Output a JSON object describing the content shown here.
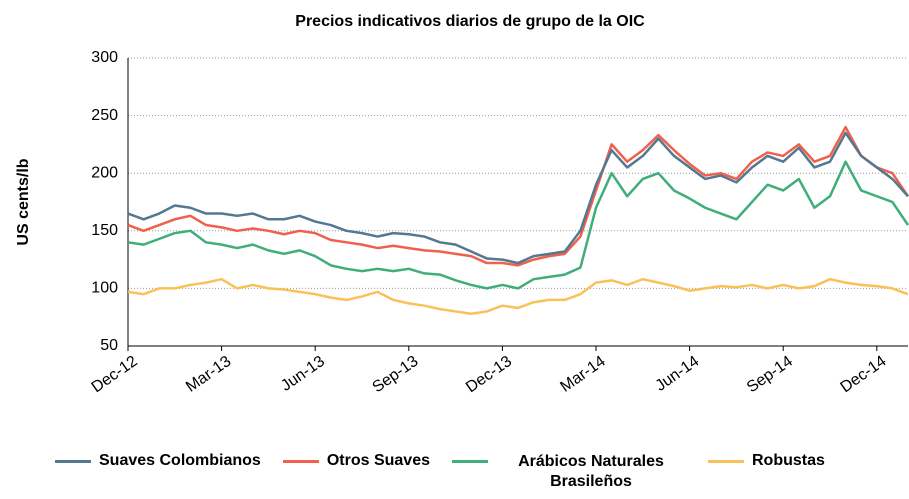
{
  "chart_data": {
    "type": "line",
    "title": "Precios indicativos diarios de grupo de la OIC",
    "y_label": "US cents/lb",
    "categories": [
      "Dec-12",
      null,
      null,
      null,
      null,
      null,
      "Mar-13",
      null,
      null,
      null,
      null,
      null,
      "Jun-13",
      null,
      null,
      null,
      null,
      null,
      "Sep-13",
      null,
      null,
      null,
      null,
      null,
      "Dec-13",
      null,
      null,
      null,
      null,
      null,
      "Mar-14",
      null,
      null,
      null,
      null,
      null,
      "Jun-14",
      null,
      null,
      null,
      null,
      null,
      "Sep-14",
      null,
      null,
      null,
      null,
      null,
      "Dec-14",
      null,
      null
    ],
    "series": [
      {
        "name": "Suaves Colombianos",
        "color": "#557890",
        "values": [
          165,
          160,
          165,
          172,
          170,
          165,
          165,
          163,
          165,
          160,
          160,
          163,
          158,
          155,
          150,
          148,
          145,
          148,
          147,
          145,
          140,
          138,
          132,
          126,
          125,
          122,
          128,
          130,
          132,
          150,
          190,
          220,
          205,
          215,
          230,
          215,
          205,
          195,
          198,
          192,
          205,
          215,
          210,
          222,
          205,
          210,
          235,
          215,
          205,
          195,
          180
        ]
      },
      {
        "name": "Otros Suaves",
        "color": "#f0604c",
        "values": [
          155,
          150,
          155,
          160,
          163,
          155,
          153,
          150,
          152,
          150,
          147,
          150,
          148,
          142,
          140,
          138,
          135,
          137,
          135,
          133,
          132,
          130,
          128,
          122,
          122,
          120,
          125,
          128,
          130,
          145,
          185,
          225,
          210,
          220,
          233,
          220,
          208,
          198,
          200,
          195,
          210,
          218,
          215,
          225,
          210,
          215,
          240,
          215,
          205,
          200,
          180
        ]
      },
      {
        "name": "Arábicos Naturales Brasileños",
        "color": "#3fae7a",
        "values": [
          140,
          138,
          143,
          148,
          150,
          140,
          138,
          135,
          138,
          133,
          130,
          133,
          128,
          120,
          117,
          115,
          117,
          115,
          117,
          113,
          112,
          107,
          103,
          100,
          103,
          100,
          108,
          110,
          112,
          118,
          170,
          200,
          180,
          195,
          200,
          185,
          178,
          170,
          165,
          160,
          175,
          190,
          185,
          195,
          170,
          180,
          210,
          185,
          180,
          175,
          155
        ]
      },
      {
        "name": "Robustas",
        "color": "#f9c157",
        "values": [
          97,
          95,
          100,
          100,
          103,
          105,
          108,
          100,
          103,
          100,
          99,
          97,
          95,
          92,
          90,
          93,
          97,
          90,
          87,
          85,
          82,
          80,
          78,
          80,
          85,
          83,
          88,
          90,
          90,
          95,
          105,
          107,
          103,
          108,
          105,
          102,
          98,
          100,
          102,
          101,
          103,
          100,
          103,
          100,
          102,
          108,
          105,
          103,
          102,
          100,
          95
        ]
      }
    ],
    "ylim": [
      50,
      300
    ],
    "yticks": [
      50,
      100,
      150,
      200,
      250,
      300
    ],
    "grid": true,
    "legend": "bottom"
  }
}
